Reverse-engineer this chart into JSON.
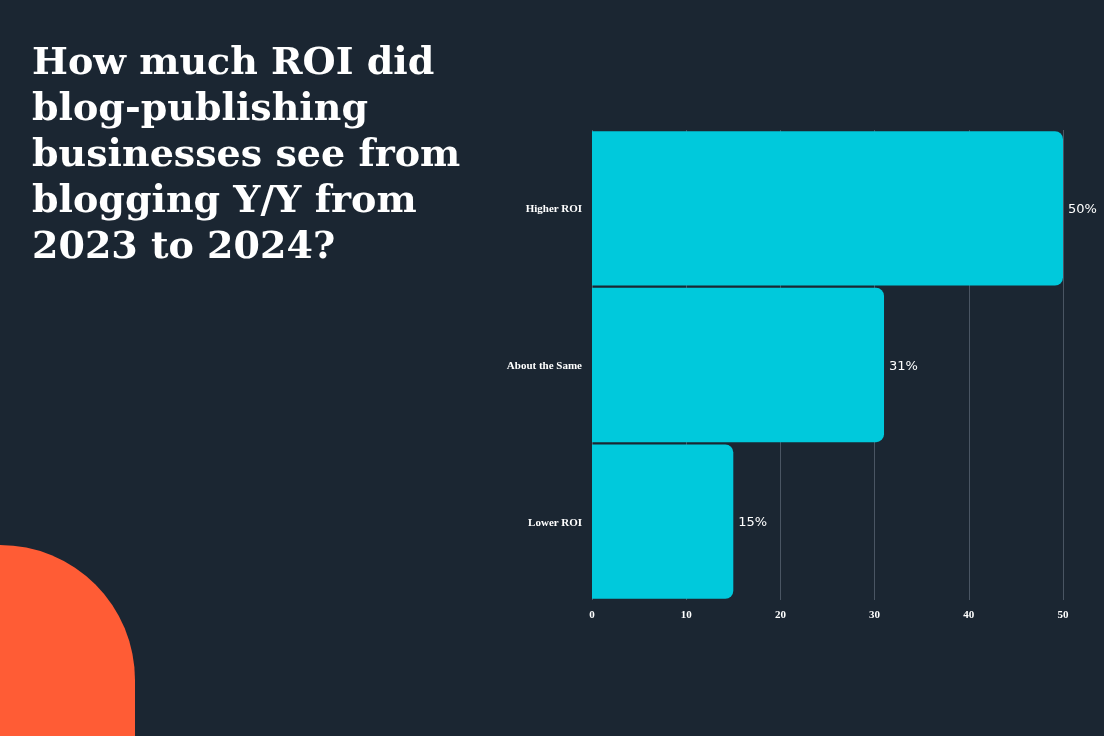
{
  "chart_data": {
    "type": "bar",
    "orientation": "horizontal",
    "title": "How much ROI did blog-publishing businesses see from blogging Y/Y from 2023 to 2024?",
    "categories": [
      "Higher ROI",
      "About the Same",
      "Lower ROI"
    ],
    "values": [
      50,
      31,
      15
    ],
    "value_labels": [
      "50%",
      "31%",
      "15%"
    ],
    "color": "#00c9dc",
    "xlim": [
      0,
      50
    ],
    "xticks": [
      0,
      10,
      20,
      30,
      40,
      50
    ],
    "grid": "x"
  }
}
